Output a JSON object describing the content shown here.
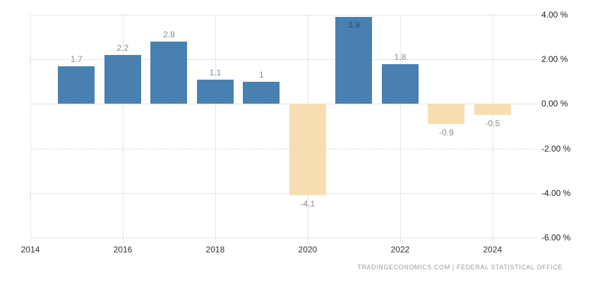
{
  "chart_data": {
    "type": "bar",
    "title": "",
    "x": [
      2015,
      2016,
      2017,
      2018,
      2019,
      2020,
      2021,
      2022,
      2023,
      2024
    ],
    "values": [
      1.7,
      2.2,
      2.8,
      1.1,
      1,
      -4.1,
      3.9,
      1.8,
      -0.9,
      -0.5
    ],
    "point_labels": [
      "1.7",
      "2.2",
      "2.8",
      "1.1",
      "1",
      "-4.1",
      "3.9",
      "1.8",
      "-0.9",
      "-0.5"
    ],
    "y_ticks": [
      {
        "value": 4,
        "label": "4.00 %"
      },
      {
        "value": 2,
        "label": "2.00 %"
      },
      {
        "value": 0,
        "label": "0.00 %"
      },
      {
        "value": -2,
        "label": "-2.00 %"
      },
      {
        "value": -4,
        "label": "-4.00 %"
      },
      {
        "value": -6,
        "label": "-6.00 %"
      }
    ],
    "x_ticks": [
      2014,
      2016,
      2018,
      2020,
      2022,
      2024
    ],
    "ylim": [
      -6,
      4
    ],
    "xlim": [
      2014,
      2024.95
    ],
    "grid": true,
    "legend": "none",
    "colors": {
      "positive_bar": "#4980b2",
      "negative_bar": "#f5dfb2",
      "gridline": "#cccccc",
      "value_label": "#8c8c8c",
      "axis_label": "#222222"
    }
  },
  "footer": {
    "attribution": "TRADINGECONOMICS.COM | FEDERAL STATISTICAL OFFICE"
  }
}
